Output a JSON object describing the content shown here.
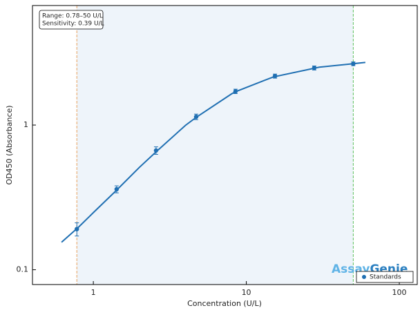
{
  "chart_data": {
    "type": "scatter",
    "xlabel": "Concentration (U/L)",
    "ylabel": "OD450 (Absorbance)",
    "xscale": "log",
    "yscale": "log",
    "xlim": [
      0.4,
      131
    ],
    "ylim": [
      0.079,
      6.7
    ],
    "xticks": [
      1,
      10,
      100
    ],
    "yticks": [
      0.1,
      1
    ],
    "series": [
      {
        "name": "Standards",
        "color": "#1f6fb2",
        "x": [
          0.78,
          1.42,
          2.57,
          4.7,
          8.5,
          15.4,
          27.8,
          50
        ],
        "values": [
          0.191,
          0.36,
          0.667,
          1.14,
          1.71,
          2.18,
          2.48,
          2.65
        ],
        "errors": [
          0.02,
          0.02,
          0.04,
          0.05,
          0.06,
          0.07,
          0.08,
          0.08
        ]
      }
    ],
    "curve": {
      "color": "#1f6fb2",
      "x": [
        0.62,
        0.8,
        1,
        1.4,
        2,
        2.6,
        4,
        4.7,
        8,
        8.5,
        15,
        30,
        60
      ],
      "values": [
        0.155,
        0.197,
        0.248,
        0.35,
        0.51,
        0.66,
        0.995,
        1.13,
        1.64,
        1.7,
        2.15,
        2.51,
        2.71
      ]
    },
    "range": {
      "x": [
        0.78,
        50
      ],
      "colors": [
        "#e8a05a",
        "#5cbf5c"
      ],
      "fill": "#eef4fa"
    },
    "annotation": [
      "Range: 0.78–50 U/L",
      "Sensitivity: 0.39 U/L"
    ],
    "logo": [
      "Assay",
      "Genie"
    ],
    "legend": "lower right"
  }
}
